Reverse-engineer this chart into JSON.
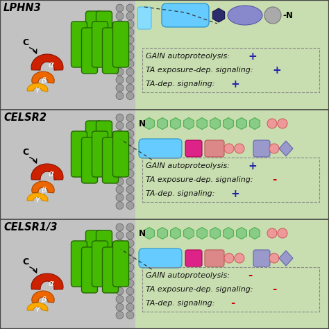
{
  "panels": [
    {
      "label": "LPHN3",
      "gain_sign": "+",
      "gain_sign_color": "#2222aa",
      "ta_exp_sign": "+",
      "ta_exp_color": "#2222aa",
      "ta_dep_sign": "+",
      "ta_dep_color": "#2222aa",
      "is_lphn3": true
    },
    {
      "label": "CELSR2",
      "gain_sign": "+",
      "gain_sign_color": "#2222aa",
      "ta_exp_sign": "-",
      "ta_exp_color": "#cc0000",
      "ta_dep_sign": "+",
      "ta_dep_color": "#2222aa",
      "is_lphn3": false
    },
    {
      "label": "CELSR1/3",
      "gain_sign": "-",
      "gain_sign_color": "#cc0000",
      "ta_exp_sign": "-",
      "ta_exp_color": "#cc0000",
      "ta_dep_sign": "-",
      "ta_dep_color": "#cc0000",
      "is_lphn3": false
    }
  ],
  "left_bg": "#c2c2c2",
  "right_bg": "#c8deb0",
  "helix_green": "#44bb00",
  "helix_dark": "#226600",
  "bead_fc": "#9e9e9e",
  "bead_ec": "#606060",
  "alpha_fc": "#cc2200",
  "alpha_ec": "#881100",
  "beta_fc": "#ee6600",
  "beta_ec": "#aa4400",
  "gamma_fc": "#ffaa00",
  "gamma_ec": "#cc8800",
  "blue_light": "#88ddff",
  "blue_mid": "#55bbee",
  "blue_gain": "#66ccff",
  "blue_gain_ec": "#3399cc",
  "dark_hex_fc": "#2d2d6e",
  "dark_hex_ec": "#111144",
  "purple_oval_fc": "#8888cc",
  "purple_oval_ec": "#5555aa",
  "gray_circ_fc": "#aaaaaa",
  "gray_circ_ec": "#777777",
  "celsr_hex_fc": "#88cc88",
  "celsr_hex_ec": "#44aa44",
  "magenta_fc": "#dd2288",
  "magenta_ec": "#aa0055",
  "pink_fc": "#dd8888",
  "pink_ec": "#bb5555",
  "pink_circ_fc": "#ee9999",
  "pink_circ_ec": "#cc5555",
  "purple_sq_fc": "#9999cc",
  "purple_sq_ec": "#6666aa",
  "purple_dia_fc": "#9999cc",
  "purple_dia_ec": "#6666aa"
}
